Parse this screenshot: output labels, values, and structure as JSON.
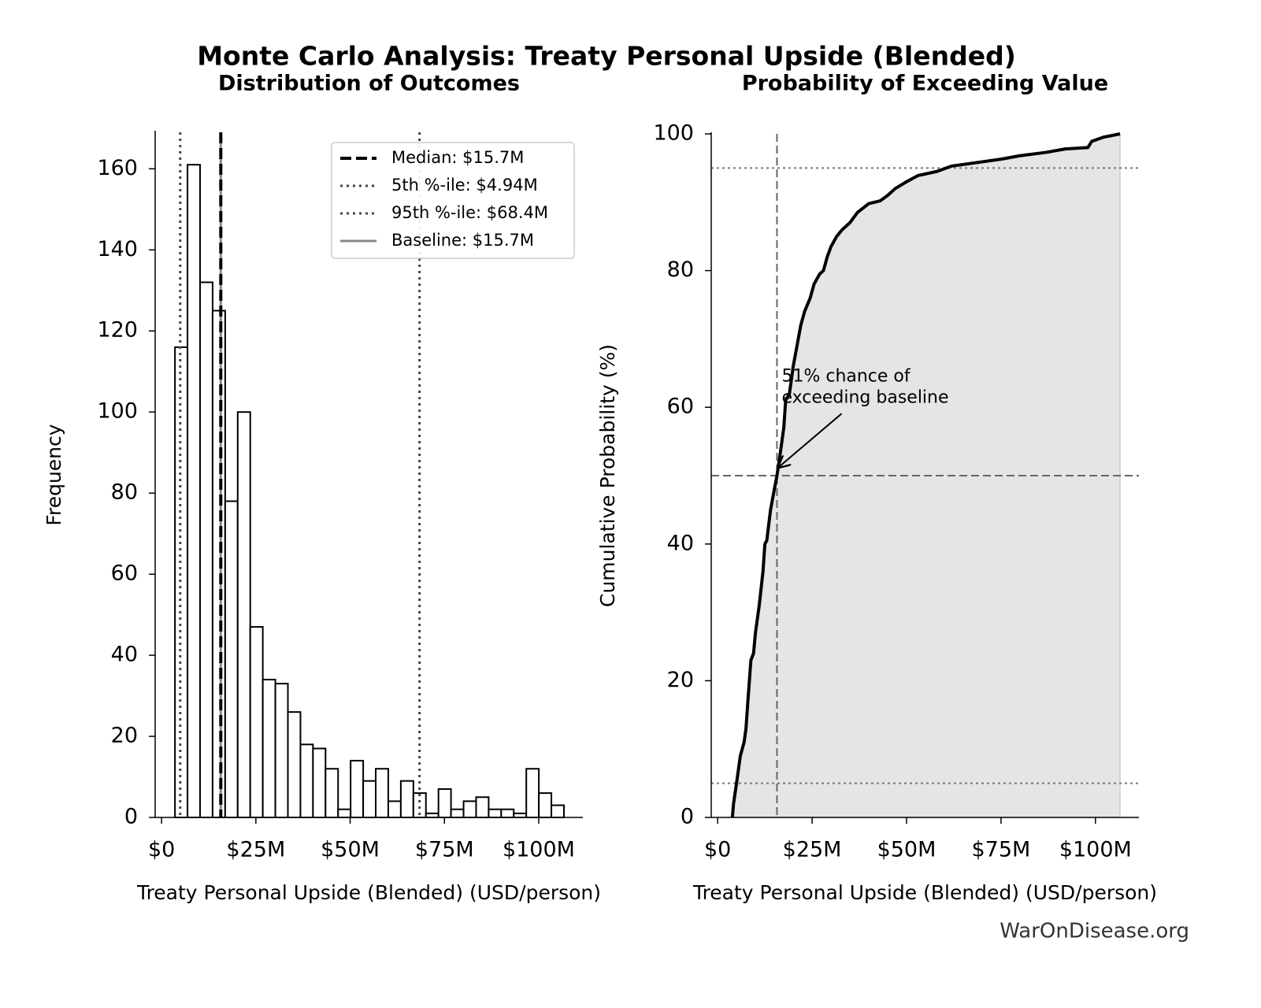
{
  "title": "Monte Carlo Analysis: Treaty Personal Upside (Blended)",
  "source": "WarOnDisease.org",
  "chart_data": [
    {
      "type": "histogram",
      "title": "Distribution of Outcomes",
      "xlabel": "Treaty Personal Upside (Blended) (USD/person)",
      "ylabel": "Frequency",
      "bins": [
        3550000,
        6877000,
        10204000,
        13531000,
        16858000,
        20185000,
        23512000,
        26839000,
        30166000,
        33493000,
        36820000,
        40147000,
        43474000,
        46801000,
        50128000,
        53455000,
        56782000,
        60109000,
        63436000,
        66763000,
        70090000,
        73417000,
        76744000,
        80071000,
        83398000,
        86725000,
        90052000,
        93379000,
        96706000,
        100033000,
        103360000,
        106687000
      ],
      "values": [
        116,
        161,
        132,
        125,
        78,
        100,
        47,
        34,
        33,
        26,
        18,
        17,
        12,
        2,
        14,
        9,
        12,
        4,
        9,
        6,
        1,
        7,
        2,
        4,
        5,
        2,
        2,
        1,
        12,
        6,
        3
      ],
      "color": "#ffffff",
      "edge_color": "#000000",
      "xlim": [
        -1700000,
        111700000
      ],
      "xticks": [
        {
          "value": 0,
          "label": "$0"
        },
        {
          "value": 25000000,
          "label": "$25M"
        },
        {
          "value": 50000000,
          "label": "$50M"
        },
        {
          "value": 75000000,
          "label": "$75M"
        },
        {
          "value": 100000000,
          "label": "$100M"
        }
      ],
      "ylim": [
        0,
        169
      ],
      "yticks": [
        0,
        20,
        40,
        60,
        80,
        100,
        120,
        140,
        160
      ],
      "vlines": [
        {
          "name": "Median: $15.7M",
          "value": 15700000,
          "color": "#000000",
          "style": "dashed"
        },
        {
          "name": "5th %-ile: $4.94M",
          "value": 4940000,
          "color": "#444444",
          "style": "dotted"
        },
        {
          "name": "95th %-ile: $68.4M",
          "value": 68400000,
          "color": "#444444",
          "style": "dotted"
        },
        {
          "name": "Baseline: $15.7M",
          "value": 15700000,
          "color": "#888888",
          "style": "solid"
        }
      ],
      "legend": "upper right"
    },
    {
      "type": "line",
      "title": "Probability of Exceeding Value",
      "xlabel": "Treaty Personal Upside (Blended) (USD/person)",
      "ylabel": "Cumulative Probability (%)",
      "x": [
        3900000,
        4200000,
        5000000,
        6000000,
        7000000,
        7500000,
        8000000,
        8800000,
        9500000,
        10000000,
        11000000,
        12000000,
        12500000,
        13000000,
        14000000,
        15000000,
        15700000,
        16500000,
        17500000,
        18000000,
        19000000,
        20000000,
        21000000,
        22000000,
        23000000,
        24500000,
        25500000,
        27000000,
        28000000,
        29000000,
        30000000,
        31500000,
        33000000,
        35000000,
        37000000,
        40000000,
        43000000,
        45000000,
        47000000,
        50000000,
        53000000,
        58000000,
        62000000,
        66000000,
        75000000,
        80000000,
        87000000,
        92000000,
        98000000,
        99000000,
        102000000,
        106500000
      ],
      "values": [
        0,
        2,
        5,
        9,
        11,
        13,
        17,
        23,
        24,
        27,
        31,
        36,
        40,
        40.5,
        45,
        48,
        50,
        53,
        57,
        61,
        62,
        66,
        69,
        72,
        74,
        76,
        78,
        79.5,
        80,
        82,
        83.5,
        85,
        86,
        87,
        88.5,
        89.8,
        90.2,
        91,
        92,
        93,
        93.9,
        94.5,
        95.3,
        95.6,
        96.3,
        96.8,
        97.3,
        97.8,
        98,
        98.9,
        99.5,
        100
      ],
      "color": "#000000",
      "fill_color": "#e5e5e5",
      "xlim": [
        -1700000,
        111500000
      ],
      "xticks": [
        {
          "value": 0,
          "label": "$0"
        },
        {
          "value": 25000000,
          "label": "$25M"
        },
        {
          "value": 50000000,
          "label": "$50M"
        },
        {
          "value": 75000000,
          "label": "$75M"
        },
        {
          "value": 100000000,
          "label": "$100M"
        }
      ],
      "ylim": [
        0,
        100
      ],
      "yticks": [
        0,
        20,
        40,
        60,
        80,
        100
      ],
      "vline": 15700000,
      "hline": 50,
      "hlines_dotted": [
        5,
        95
      ],
      "annotation": {
        "text": [
          "51% chance of",
          "exceeding baseline"
        ],
        "xy": [
          15700000,
          51
        ]
      }
    }
  ]
}
